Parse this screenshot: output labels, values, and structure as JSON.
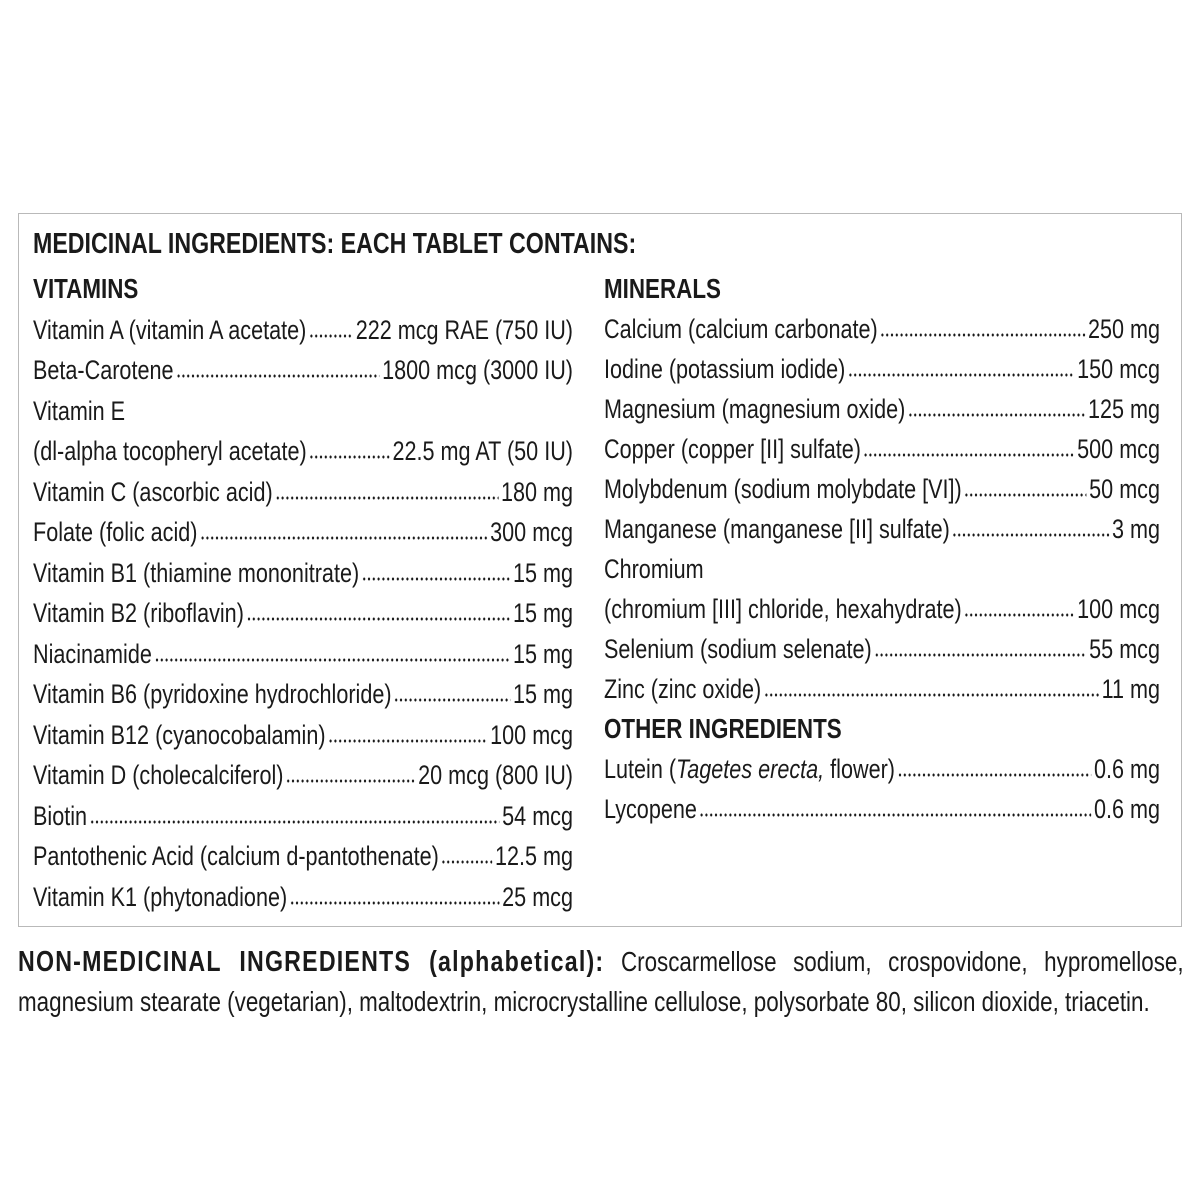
{
  "title": "MEDICINAL INGREDIENTS: EACH TABLET CONTAINS:",
  "vitamins": {
    "heading": "VITAMINS",
    "items": [
      {
        "name": "Vitamin A (vitamin A acetate)",
        "amount": "222 mcg RAE (750 IU)"
      },
      {
        "name": "Beta-Carotene",
        "amount": "1800 mcg (3000 IU)"
      },
      {
        "name": "Vitamin E",
        "amount": ""
      },
      {
        "name": "(dl-alpha tocopheryl acetate)",
        "amount": "22.5 mg AT (50 IU)"
      },
      {
        "name": "Vitamin C (ascorbic acid)",
        "amount": "180 mg"
      },
      {
        "name": "Folate (folic acid)",
        "amount": "300 mcg"
      },
      {
        "name": "Vitamin B1 (thiamine mononitrate)",
        "amount": "15 mg"
      },
      {
        "name": "Vitamin B2 (riboflavin)",
        "amount": "15 mg"
      },
      {
        "name": "Niacinamide",
        "amount": "15 mg"
      },
      {
        "name": "Vitamin B6 (pyridoxine hydrochloride)",
        "amount": "15 mg"
      },
      {
        "name": "Vitamin B12 (cyanocobalamin)",
        "amount": "100 mcg"
      },
      {
        "name": "Vitamin D (cholecalciferol)",
        "amount": "20 mcg (800 IU)"
      },
      {
        "name": "Biotin",
        "amount": "54 mcg"
      },
      {
        "name": "Pantothenic Acid (calcium d-pantothenate)",
        "amount": "12.5 mg"
      },
      {
        "name": "Vitamin K1 (phytonadione)",
        "amount": "25 mcg"
      }
    ]
  },
  "minerals": {
    "heading": "MINERALS",
    "items": [
      {
        "name": "Calcium (calcium carbonate)",
        "amount": "250 mg"
      },
      {
        "name": "Iodine (potassium iodide)",
        "amount": "150 mcg"
      },
      {
        "name": "Magnesium (magnesium oxide)",
        "amount": "125 mg"
      },
      {
        "name": "Copper (copper [II] sulfate)",
        "amount": "500 mcg"
      },
      {
        "name": "Molybdenum (sodium molybdate [VI])",
        "amount": "50 mcg"
      },
      {
        "name": "Manganese (manganese [II] sulfate)",
        "amount": "3 mg"
      },
      {
        "name": "Chromium",
        "amount": ""
      },
      {
        "name": "(chromium [III] chloride, hexahydrate)",
        "amount": "100 mcg"
      },
      {
        "name": "Selenium (sodium selenate)",
        "amount": "55 mcg"
      },
      {
        "name": "Zinc (zinc oxide)",
        "amount": "11 mg"
      }
    ]
  },
  "other": {
    "heading": "OTHER INGREDIENTS",
    "items": [
      {
        "name_parts": [
          {
            "text": "Lutein ("
          },
          {
            "text": "Tagetes erecta,",
            "italic": true
          },
          {
            "text": " flower)"
          }
        ],
        "amount": "0.6 mg"
      },
      {
        "name": "Lycopene",
        "amount": "0.6 mg"
      }
    ]
  },
  "non_medicinal": {
    "label": "NON-MEDICINAL INGREDIENTS (alphabetical):",
    "text": " Croscarmellose sodium, crospovidone, hypromellose, magnesium stearate (vegetarian), maltodextrin, microcrystalline cellulose, polysorbate 80, silicon dioxide, triacetin."
  }
}
